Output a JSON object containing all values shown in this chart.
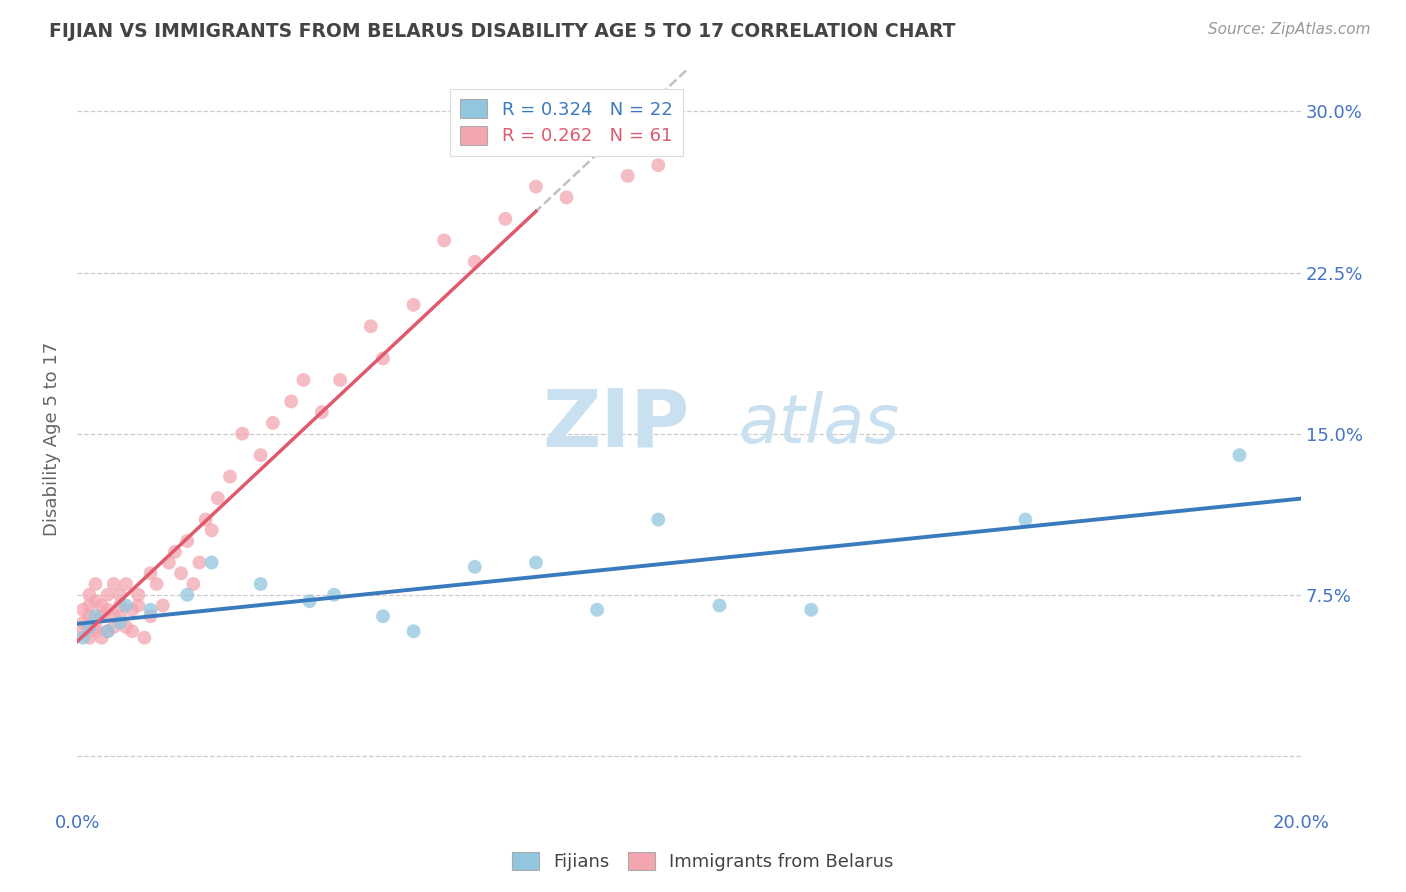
{
  "title": "FIJIAN VS IMMIGRANTS FROM BELARUS DISABILITY AGE 5 TO 17 CORRELATION CHART",
  "source": "Source: ZipAtlas.com",
  "ylabel": "Disability Age 5 to 17",
  "xlim": [
    0.0,
    0.2
  ],
  "ylim": [
    -0.025,
    0.32
  ],
  "yticks": [
    0.0,
    0.075,
    0.15,
    0.225,
    0.3
  ],
  "ytick_labels_left": [
    "",
    "",
    "",
    "",
    ""
  ],
  "ytick_labels_right": [
    "",
    "7.5%",
    "15.0%",
    "22.5%",
    "30.0%"
  ],
  "xticks": [
    0.0,
    0.05,
    0.1,
    0.15,
    0.2
  ],
  "xtick_labels": [
    "0.0%",
    "",
    "",
    "",
    "20.0%"
  ],
  "fijian_R": 0.324,
  "fijian_N": 22,
  "belarus_R": 0.262,
  "belarus_N": 61,
  "fijian_color": "#92c5de",
  "belarus_color": "#f4a6b0",
  "fijian_line_color": "#3a7bbf",
  "belarus_line_color": "#e05a6e",
  "trend_line_color": "#c0c0c0",
  "background_color": "#ffffff",
  "grid_color": "#cccccc",
  "fijian_x": [
    0.001,
    0.002,
    0.003,
    0.005,
    0.007,
    0.008,
    0.012,
    0.018,
    0.022,
    0.03,
    0.038,
    0.042,
    0.05,
    0.055,
    0.065,
    0.075,
    0.085,
    0.095,
    0.105,
    0.12,
    0.155,
    0.19
  ],
  "fijian_y": [
    0.055,
    0.06,
    0.065,
    0.058,
    0.062,
    0.07,
    0.068,
    0.075,
    0.09,
    0.08,
    0.072,
    0.075,
    0.065,
    0.058,
    0.088,
    0.09,
    0.068,
    0.11,
    0.07,
    0.068,
    0.11,
    0.14
  ],
  "belarus_x": [
    0.001,
    0.001,
    0.001,
    0.002,
    0.002,
    0.002,
    0.002,
    0.003,
    0.003,
    0.003,
    0.003,
    0.004,
    0.004,
    0.004,
    0.005,
    0.005,
    0.005,
    0.006,
    0.006,
    0.006,
    0.007,
    0.007,
    0.007,
    0.008,
    0.008,
    0.009,
    0.009,
    0.01,
    0.01,
    0.011,
    0.012,
    0.012,
    0.013,
    0.014,
    0.015,
    0.016,
    0.017,
    0.018,
    0.019,
    0.02,
    0.021,
    0.022,
    0.023,
    0.025,
    0.027,
    0.03,
    0.032,
    0.035,
    0.037,
    0.04,
    0.043,
    0.048,
    0.05,
    0.055,
    0.06,
    0.065,
    0.07,
    0.075,
    0.08,
    0.09,
    0.095
  ],
  "belarus_y": [
    0.062,
    0.058,
    0.068,
    0.055,
    0.07,
    0.065,
    0.075,
    0.06,
    0.072,
    0.058,
    0.08,
    0.065,
    0.07,
    0.055,
    0.068,
    0.075,
    0.058,
    0.065,
    0.08,
    0.06,
    0.07,
    0.065,
    0.075,
    0.06,
    0.08,
    0.068,
    0.058,
    0.07,
    0.075,
    0.055,
    0.085,
    0.065,
    0.08,
    0.07,
    0.09,
    0.095,
    0.085,
    0.1,
    0.08,
    0.09,
    0.11,
    0.105,
    0.12,
    0.13,
    0.15,
    0.14,
    0.155,
    0.165,
    0.175,
    0.16,
    0.175,
    0.2,
    0.185,
    0.21,
    0.24,
    0.23,
    0.25,
    0.265,
    0.26,
    0.27,
    0.275
  ],
  "watermark_zip": "ZIP",
  "watermark_atlas": "atlas",
  "watermark_color": "#c8e0f0",
  "title_color": "#444444",
  "axis_label_color": "#666666",
  "tick_label_color": "#4472c4",
  "legend_fijian_label": "R = 0.324   N = 22",
  "legend_belarus_label": "R = 0.262   N = 61"
}
